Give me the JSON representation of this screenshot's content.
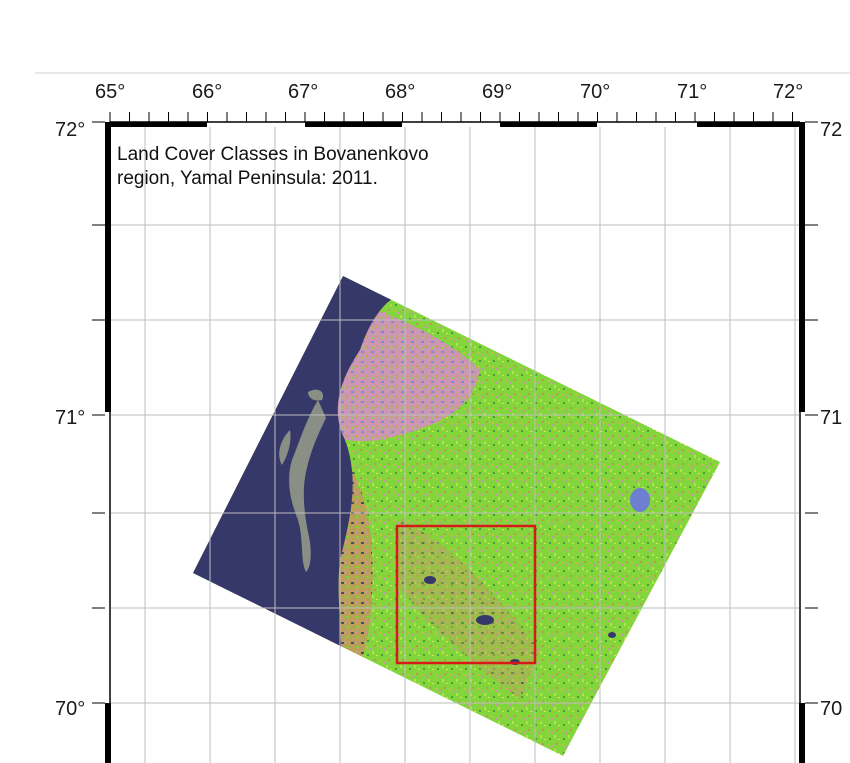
{
  "map": {
    "title_line1": "Land Cover Classes in Bovanenkovo",
    "title_line2": "region, Yamal Peninsula: 2011.",
    "lon_labels": [
      "65°",
      "66°",
      "67°",
      "68°",
      "69°",
      "70°",
      "71°",
      "72°"
    ],
    "lat_labels_left": [
      "72°",
      "71°",
      "70°"
    ],
    "lat_labels_right": [
      "72",
      "71",
      "70"
    ],
    "colors": {
      "water": "#37386a",
      "vegetation_green": "#7fd83a",
      "shrub_yellow": "#c9c24a",
      "barren_orange": "#c8935a",
      "wet_pink": "#d48bbd",
      "wet_blue": "#6d7fd0",
      "island_gray": "#8a8f86",
      "study_area_box": "#d61a1a",
      "grid": "#bcbcbc",
      "frame": "#000000"
    }
  }
}
